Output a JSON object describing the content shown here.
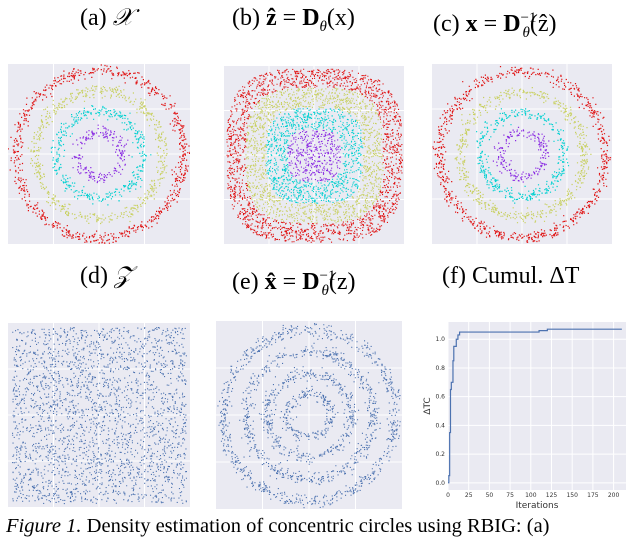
{
  "panels": {
    "a": {
      "label": "(a)",
      "symbol": "𝒳"
    },
    "b": {
      "label": "(b)",
      "z_hat": "ẑ",
      "eq": "=",
      "D": "D",
      "theta": "θ",
      "arg": "(x)"
    },
    "c": {
      "label": "(c)",
      "x": "x",
      "eq": "=",
      "D": "D",
      "theta": "θ",
      "inv": "−1",
      "arg": "(ẑ)"
    },
    "d": {
      "label": "(d)",
      "symbol": "𝒵"
    },
    "e": {
      "label": "(e)",
      "x_hat": "x̂",
      "eq": "=",
      "D": "D",
      "theta": "θ",
      "inv": "−1",
      "arg": "(z)"
    },
    "f": {
      "label": "(f)",
      "text": "Cumul. ΔT"
    }
  },
  "caption": {
    "label": "Figure 1.",
    "text": " Density estimation of concentric circles using RBIG: (a)"
  },
  "colors": {
    "ring1": "#8a2be2",
    "ring2": "#00d0d0",
    "ring3": "#c8d060",
    "ring4": "#e01010",
    "points": "#4c72b0",
    "background": "#eaeaf2",
    "line": "#4c72b0"
  },
  "chart_data": {
    "type": "line",
    "xlabel": "Iterations",
    "ylabel": "ΔTC",
    "x": [
      0,
      1,
      2,
      3,
      4,
      5,
      6,
      7,
      8,
      10,
      12,
      14,
      16,
      18,
      20,
      25,
      30,
      40,
      60,
      80,
      100,
      110,
      120,
      130,
      140,
      150,
      170,
      190,
      210
    ],
    "y": [
      0.0,
      0.05,
      0.35,
      0.65,
      0.7,
      0.7,
      0.85,
      0.95,
      0.95,
      1.0,
      1.03,
      1.05,
      1.05,
      1.05,
      1.05,
      1.05,
      1.05,
      1.05,
      1.05,
      1.05,
      1.05,
      1.06,
      1.07,
      1.07,
      1.07,
      1.07,
      1.07,
      1.07,
      1.07
    ],
    "xticks": [
      "0",
      "25",
      "50",
      "75",
      "100",
      "125",
      "150",
      "175",
      "200"
    ],
    "yticks": [
      "0.0",
      "0.2",
      "0.4",
      "0.6",
      "0.8",
      "1.0"
    ],
    "xlim": [
      0,
      215
    ],
    "ylim": [
      -0.05,
      1.12
    ]
  }
}
